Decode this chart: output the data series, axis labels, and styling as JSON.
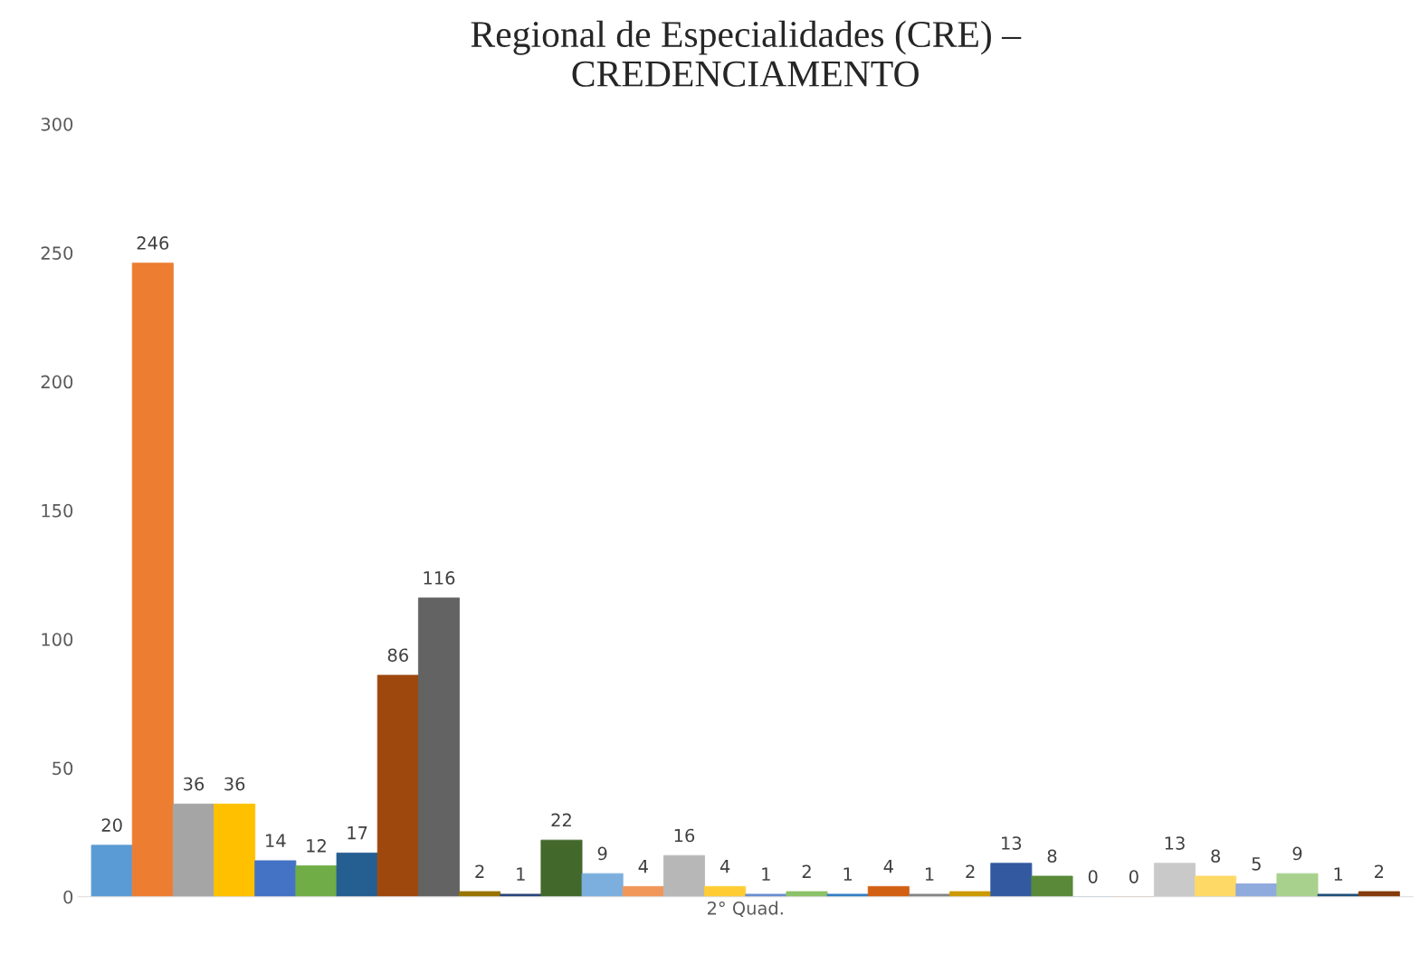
{
  "chart_data": {
    "type": "bar",
    "title": "Regional de Especialidades (CRE) –\nCREDENCIAMENTO",
    "categories": [
      "2° Quad."
    ],
    "series": [
      {
        "color": "#5b9bd5",
        "values": [
          20
        ]
      },
      {
        "color": "#ed7d31",
        "values": [
          246
        ]
      },
      {
        "color": "#a5a5a5",
        "values": [
          36
        ]
      },
      {
        "color": "#ffc000",
        "values": [
          36
        ]
      },
      {
        "color": "#4472c4",
        "values": [
          14
        ]
      },
      {
        "color": "#70ad47",
        "values": [
          12
        ]
      },
      {
        "color": "#255e91",
        "values": [
          17
        ]
      },
      {
        "color": "#9e480e",
        "values": [
          86
        ]
      },
      {
        "color": "#636363",
        "values": [
          116
        ]
      },
      {
        "color": "#997300",
        "values": [
          2
        ]
      },
      {
        "color": "#264478",
        "values": [
          1
        ]
      },
      {
        "color": "#43682b",
        "values": [
          22
        ]
      },
      {
        "color": "#7cafdd",
        "values": [
          9
        ]
      },
      {
        "color": "#f1975a",
        "values": [
          4
        ]
      },
      {
        "color": "#b7b7b7",
        "values": [
          16
        ]
      },
      {
        "color": "#ffcd33",
        "values": [
          4
        ]
      },
      {
        "color": "#698ed0",
        "values": [
          1
        ]
      },
      {
        "color": "#8cc168",
        "values": [
          2
        ]
      },
      {
        "color": "#327dc2",
        "values": [
          1
        ]
      },
      {
        "color": "#d26012",
        "values": [
          4
        ]
      },
      {
        "color": "#848484",
        "values": [
          1
        ]
      },
      {
        "color": "#cc9a00",
        "values": [
          2
        ]
      },
      {
        "color": "#335aa1",
        "values": [
          13
        ]
      },
      {
        "color": "#5a8a39",
        "values": [
          8
        ]
      },
      {
        "color": "#9dc3e6",
        "values": [
          0
        ]
      },
      {
        "color": "#f4b183",
        "values": [
          0
        ]
      },
      {
        "color": "#c9c9c9",
        "values": [
          13
        ]
      },
      {
        "color": "#ffd966",
        "values": [
          8
        ]
      },
      {
        "color": "#8faadc",
        "values": [
          5
        ]
      },
      {
        "color": "#a9d18e",
        "values": [
          9
        ]
      },
      {
        "color": "#1f4e79",
        "values": [
          1
        ]
      },
      {
        "color": "#843c0c",
        "values": [
          2
        ]
      }
    ],
    "ylim": [
      0,
      300
    ],
    "yticks": [
      0,
      50,
      100,
      150,
      200,
      250,
      300
    ],
    "data_labels": true,
    "grid": false,
    "legend": false
  }
}
